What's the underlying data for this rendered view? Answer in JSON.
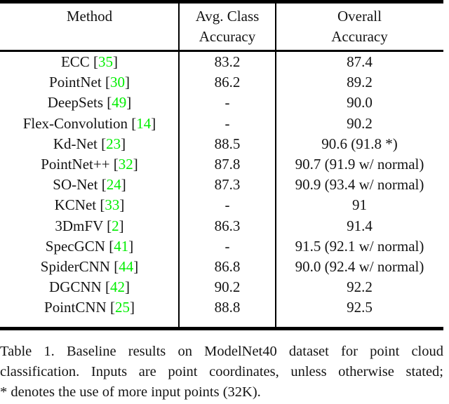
{
  "colors": {
    "citation_green": "#00ee00",
    "text": "#141414",
    "rule": "#000000"
  },
  "table": {
    "bracket_open": " [",
    "bracket_close": "]",
    "header": {
      "method": "Method",
      "avg_line1": "Avg. Class",
      "avg_line2": "Accuracy",
      "overall_line1": "Overall",
      "overall_line2": "Accuracy"
    },
    "rows": [
      {
        "name": "ECC",
        "cite": "35",
        "avg": "83.2",
        "overall": "87.4"
      },
      {
        "name": "PointNet",
        "cite": "30",
        "avg": "86.2",
        "overall": "89.2"
      },
      {
        "name": "DeepSets",
        "cite": "49",
        "avg": "-",
        "overall": "90.0"
      },
      {
        "name": "Flex-Convolution",
        "cite": "14",
        "avg": "-",
        "overall": "90.2"
      },
      {
        "name": "Kd-Net",
        "cite": "23",
        "avg": "88.5",
        "overall": "90.6 (91.8 *)"
      },
      {
        "name": "PointNet++",
        "cite": "32",
        "avg": "87.8",
        "overall": "90.7 (91.9 w/ normal)"
      },
      {
        "name": "SO-Net",
        "cite": "24",
        "avg": "87.3",
        "overall": "90.9 (93.4 w/ normal)"
      },
      {
        "name": "KCNet",
        "cite": "33",
        "avg": "-",
        "overall": "91"
      },
      {
        "name": "3DmFV",
        "cite": "2",
        "avg": "86.3",
        "overall": "91.4"
      },
      {
        "name": "SpecGCN",
        "cite": "41",
        "avg": "-",
        "overall": "91.5 (92.1 w/ normal)"
      },
      {
        "name": "SpiderCNN",
        "cite": "44",
        "avg": "86.8",
        "overall": "90.0 (92.4 w/ normal)"
      },
      {
        "name": "DGCNN",
        "cite": "42",
        "avg": "90.2",
        "overall": "92.2"
      },
      {
        "name": "PointCNN",
        "cite": "25",
        "avg": "88.8",
        "overall": "92.5"
      }
    ]
  },
  "caption": {
    "lines": [
      "Table 1. Baseline results on ModelNet40 dataset for point cloud",
      "classification. Inputs are point coordinates, unless otherwise stated;",
      "* denotes the use of more input points (32K)."
    ]
  }
}
